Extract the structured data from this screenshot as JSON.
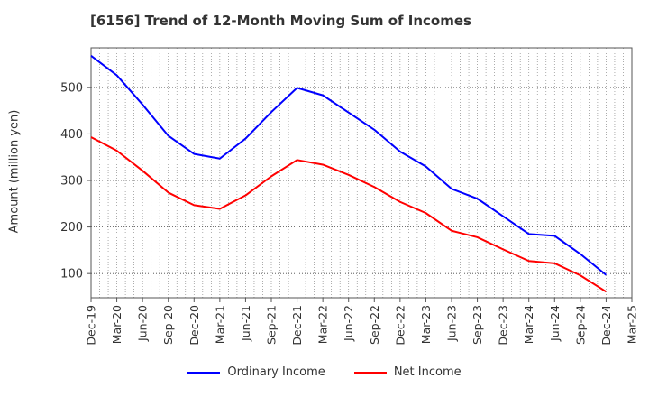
{
  "chart_data": {
    "type": "line",
    "title": "[6156]  Trend of 12-Month Moving Sum of Incomes",
    "ylabel": "Amount (million yen)",
    "xlabel": "",
    "ylim": [
      48,
      585
    ],
    "yticks": [
      100,
      200,
      300,
      400,
      500
    ],
    "grid": true,
    "legend_position": "bottom",
    "categories": [
      "Dec-19",
      "Mar-20",
      "Jun-20",
      "Sep-20",
      "Dec-20",
      "Mar-21",
      "Jun-21",
      "Sep-21",
      "Dec-21",
      "Mar-22",
      "Jun-22",
      "Sep-22",
      "Dec-22",
      "Mar-23",
      "Jun-23",
      "Sep-23",
      "Dec-23",
      "Mar-24",
      "Jun-24",
      "Sep-24",
      "Dec-24",
      "Mar-25"
    ],
    "series": [
      {
        "name": "Ordinary Income",
        "color": "#0000ff",
        "values": [
          568,
          526,
          463,
          396,
          357,
          347,
          390,
          447,
          499,
          483,
          446,
          409,
          362,
          330,
          282,
          261,
          223,
          185,
          181,
          142,
          97,
          null
        ]
      },
      {
        "name": "Net Income",
        "color": "#ff0000",
        "values": [
          393,
          364,
          321,
          274,
          247,
          239,
          268,
          309,
          344,
          334,
          312,
          286,
          254,
          230,
          192,
          178,
          152,
          127,
          122,
          96,
          61,
          null
        ]
      }
    ]
  }
}
